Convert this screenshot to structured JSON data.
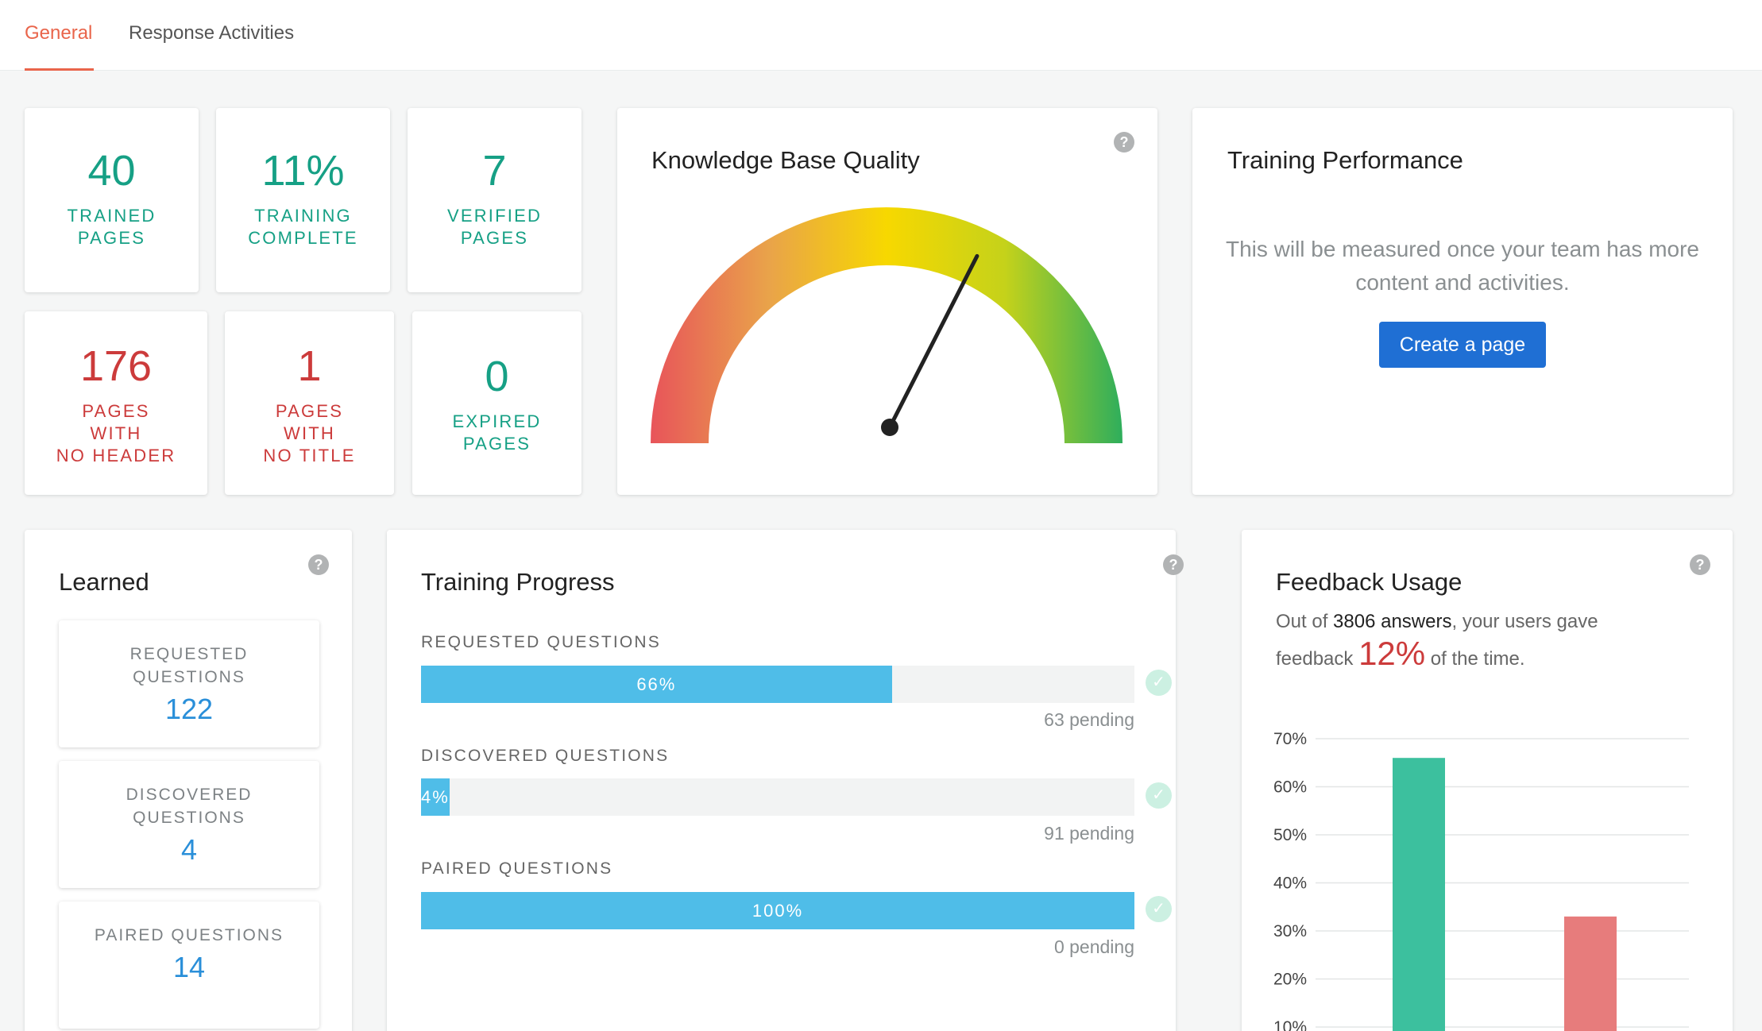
{
  "tabs": [
    {
      "label": "General",
      "active": true
    },
    {
      "label": "Response Activities",
      "active": false
    }
  ],
  "stats": {
    "trained_pages": {
      "value": "40",
      "label": "TRAINED\nPAGES"
    },
    "training_complete": {
      "value": "11%",
      "label": "TRAINING\nCOMPLETE"
    },
    "verified_pages": {
      "value": "7",
      "label": "VERIFIED\nPAGES"
    },
    "no_header": {
      "value": "176",
      "label": "PAGES\nWITH\nNO HEADER"
    },
    "no_title": {
      "value": "1",
      "label": "PAGES\nWITH\nNO TITLE"
    },
    "expired_pages": {
      "value": "0",
      "label": "EXPIRED\nPAGES"
    }
  },
  "kb_quality": {
    "title": "Knowledge Base Quality",
    "help": "?",
    "gauge_fraction": 0.65
  },
  "training_performance": {
    "title": "Training Performance",
    "message": "This will be measured once your team has more content and activities.",
    "button_label": "Create a page"
  },
  "learned": {
    "title": "Learned",
    "help": "?",
    "items": [
      {
        "label": "REQUESTED\nQUESTIONS",
        "value": "122"
      },
      {
        "label": "DISCOVERED\nQUESTIONS",
        "value": "4"
      },
      {
        "label": "PAIRED QUESTIONS",
        "value": "14"
      }
    ]
  },
  "training_progress": {
    "title": "Training Progress",
    "help": "?",
    "check": "✓",
    "rows": [
      {
        "label": "REQUESTED QUESTIONS",
        "percent": 66,
        "percent_label": "66%",
        "pending": "63 pending"
      },
      {
        "label": "DISCOVERED QUESTIONS",
        "percent": 4,
        "percent_label": "4%",
        "pending": "91 pending"
      },
      {
        "label": "PAIRED QUESTIONS",
        "percent": 100,
        "percent_label": "100%",
        "pending": "0 pending"
      }
    ]
  },
  "feedback_usage": {
    "title": "Feedback Usage",
    "help": "?",
    "text_prefix": "Out of ",
    "answers": "3806 answers",
    "text_mid": ", your users gave feedback ",
    "percent": "12%",
    "text_suffix": " of the time."
  },
  "colors": {
    "accent": "#e9654b",
    "green": "#16a085",
    "red": "#cc3b3b",
    "blue_button": "#1f6fd4",
    "progress": "#4fbde8",
    "bar_green": "#3cc09e",
    "bar_red": "#e77c7c"
  },
  "chart_data": {
    "type": "bar",
    "ylabels": [
      "70%",
      "60%",
      "50%",
      "40%",
      "30%",
      "20%",
      "10%"
    ],
    "ylim": [
      0,
      70
    ],
    "series": [
      {
        "values": [
          66,
          33
        ],
        "colors": [
          "#3cc09e",
          "#e77c7c"
        ]
      }
    ],
    "values": [
      66,
      33
    ]
  }
}
